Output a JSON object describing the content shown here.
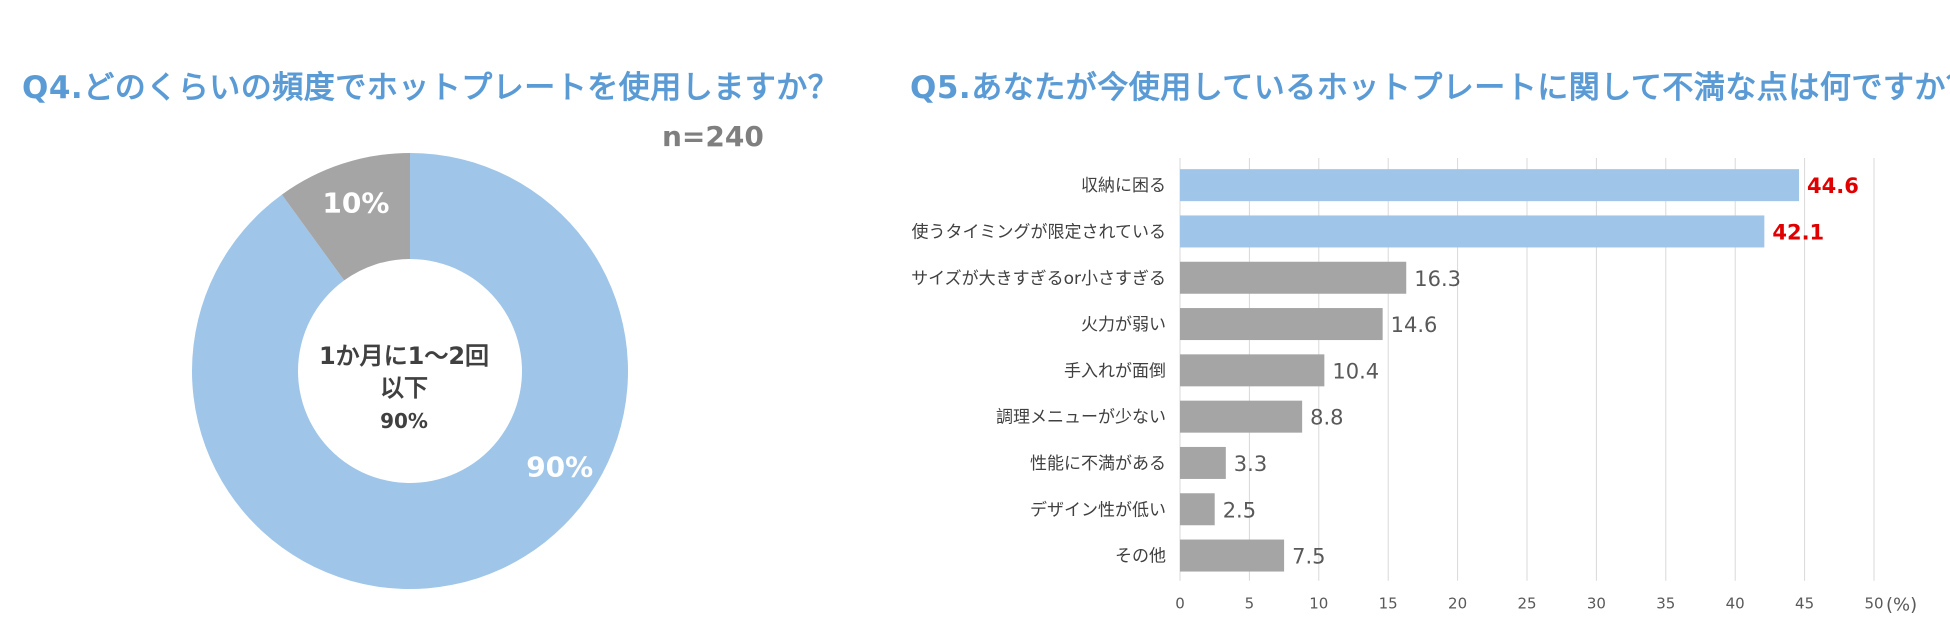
{
  "chart_data": [
    {
      "type": "pie",
      "title": "Q4.どのくらいの頻度でホットプレートを使用しますか？",
      "annotation": "n=240",
      "center_label": {
        "line1": "1か月に1～2回",
        "line2": "以下",
        "value": "90%"
      },
      "slices": [
        {
          "value": 90,
          "label": "90%",
          "color": "#9fc5e8"
        },
        {
          "value": 10,
          "label": "10%",
          "color": "#a5a5a5"
        }
      ]
    },
    {
      "type": "bar",
      "orientation": "horizontal",
      "title": "Q5.あなたが今使用しているホットプレートに関して不満な点は何ですか？",
      "unit": "(%)",
      "xlim": [
        0,
        50
      ],
      "xticks": [
        "0",
        "5",
        "10",
        "15",
        "20",
        "25",
        "30",
        "35",
        "40",
        "45",
        "50"
      ],
      "categories": [
        "収納に困る",
        "使うタイミングが限定されている",
        "サイズが大きすぎるor小さすぎる",
        "火力が弱い",
        "手入れが面倒",
        "調理メニューが少ない",
        "性能に不満がある",
        "デザイン性が低い",
        "その他"
      ],
      "values": [
        44.6,
        42.1,
        16.3,
        14.6,
        10.4,
        8.8,
        3.3,
        2.5,
        7.5
      ],
      "value_labels": [
        "44.6",
        "42.1",
        "16.3",
        "14.6",
        "10.4",
        "8.8",
        "3.3",
        "2.5",
        "7.5"
      ],
      "highlight_count": 2,
      "colors": {
        "highlight": "#9fc5e8",
        "normal": "#a5a5a5",
        "highlight_label": "#e00000",
        "normal_label": "#595959",
        "grid": "#d9d9d9"
      }
    }
  ]
}
